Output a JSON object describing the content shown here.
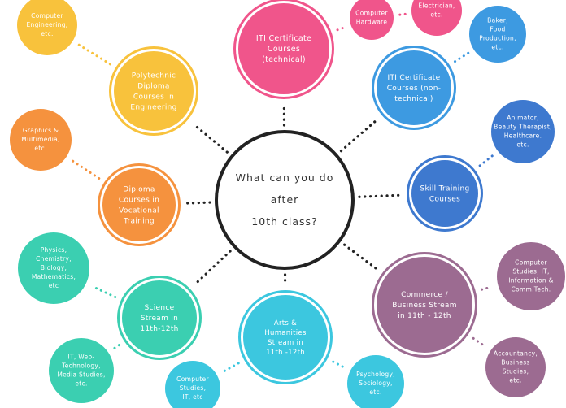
{
  "center": {
    "lines": [
      "What can you do",
      "after",
      "10th class?"
    ],
    "color": "#222222"
  },
  "nodes": [
    {
      "key": "iti-technical",
      "lines": [
        "ITI Certificate",
        "Courses",
        "(technical)"
      ],
      "color": "#f0558b"
    },
    {
      "key": "iti-nontechnical",
      "lines": [
        "ITI Certificate",
        "Courses (non-",
        "technical)"
      ],
      "color": "#3d9ae1"
    },
    {
      "key": "skill-training",
      "lines": [
        "Skill Training",
        "Courses"
      ],
      "color": "#3e79cf"
    },
    {
      "key": "commerce",
      "lines": [
        "Commerce /",
        "Business Stream",
        "in 11th - 12th"
      ],
      "color": "#9c6b91"
    },
    {
      "key": "arts",
      "lines": [
        "Arts &",
        "Humanities",
        "Stream in",
        "11th -12th"
      ],
      "color": "#3cc7df"
    },
    {
      "key": "science",
      "lines": [
        "Science",
        "Stream in",
        "11th-12th"
      ],
      "color": "#3bcfb1"
    },
    {
      "key": "diploma-vocational",
      "lines": [
        "Diploma",
        "Courses in",
        "Vocational",
        "Training"
      ],
      "color": "#f5923e"
    },
    {
      "key": "polytechnic",
      "lines": [
        "Polytechnic",
        "Diploma",
        "Courses in",
        "Engineering"
      ],
      "color": "#f8c23c"
    }
  ],
  "leaves": [
    {
      "key": "computer-hardware",
      "lines": [
        "Computer",
        "Hardware"
      ],
      "color": "#f0558b"
    },
    {
      "key": "electrician",
      "lines": [
        "Electrician,",
        "etc."
      ],
      "color": "#f0558b"
    },
    {
      "key": "baker",
      "lines": [
        "Baker,",
        "Food",
        "Production,",
        "etc."
      ],
      "color": "#3d9ae1"
    },
    {
      "key": "animator",
      "lines": [
        "Animator,",
        "Beauty Therapist,",
        "Healthcare.",
        "etc."
      ],
      "color": "#3e79cf"
    },
    {
      "key": "comp-studies-commerce",
      "lines": [
        "Computer",
        "Studies, IT,",
        "Information &",
        "Comm.Tech."
      ],
      "color": "#9c6b91"
    },
    {
      "key": "accountancy",
      "lines": [
        "Accountancy,",
        "Business",
        "Studies,",
        "etc."
      ],
      "color": "#9c6b91"
    },
    {
      "key": "psychology",
      "lines": [
        "Psychology,",
        "Sociology,",
        "etc."
      ],
      "color": "#3cc7df"
    },
    {
      "key": "comp-studies-arts",
      "lines": [
        "Computer",
        "Studies,",
        "IT, etc"
      ],
      "color": "#3cc7df"
    },
    {
      "key": "it-web",
      "lines": [
        "IT, Web-",
        "Technology,",
        "Media Studies,",
        "etc."
      ],
      "color": "#3bcfb1"
    },
    {
      "key": "physics",
      "lines": [
        "Physics,",
        "Chemistry,",
        "Biology,",
        "Mathematics,",
        "etc"
      ],
      "color": "#3bcfb1"
    },
    {
      "key": "graphics",
      "lines": [
        "Graphics &",
        "Multimedia,",
        "etc."
      ],
      "color": "#f5923e"
    },
    {
      "key": "computer-engineering",
      "lines": [
        "Computer",
        "Engineering,",
        "etc."
      ],
      "color": "#f8c23c"
    }
  ]
}
